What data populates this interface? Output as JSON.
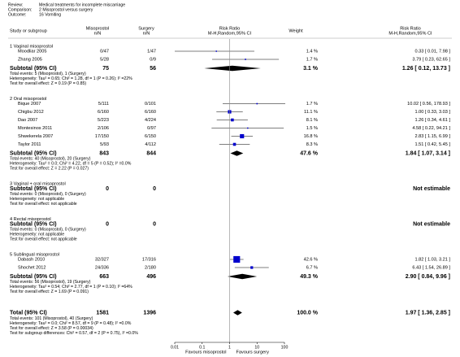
{
  "header": [
    {
      "label": "Review:",
      "text": "Medical treatments for incomplete miscarriage"
    },
    {
      "label": "Comparison:",
      "text": "2 Misoprostol versus surgery"
    },
    {
      "label": "Outcome:",
      "text": "16 Vomiting"
    }
  ],
  "columns": {
    "study": "Study or subgroup",
    "exp": [
      "Misoprostol",
      "n/N"
    ],
    "ctrl": [
      "Surgery",
      "n/N"
    ],
    "plot": [
      "Risk Ratio",
      "M-H,Random,95% CI"
    ],
    "weight": "Weight",
    "ratio": [
      "Risk Ratio",
      "M-H,Random,95% CI"
    ]
  },
  "groups": [
    {
      "label": "1 Vaginal misoprostol",
      "studies": [
        {
          "name": "Moodliar 2005",
          "exp": "0/47",
          "ctrl": "1/47",
          "weight": 1.4,
          "weight_label": "1.4 %",
          "rr": 0.33,
          "lo": 0.01,
          "hi": 7.98,
          "ci_label": "0.33 [ 0.01, 7.98 ]"
        },
        {
          "name": "Zhang 2005",
          "exp": "5/28",
          "ctrl": "0/9",
          "weight": 1.7,
          "weight_label": "1.7 %",
          "rr": 3.79,
          "lo": 0.23,
          "hi": 62.65,
          "ci_label": "3.79 [ 0.23, 62.65 ]"
        }
      ],
      "subtotal": {
        "name": "Subtotal (95% CI)",
        "exp": 75,
        "ctrl": 56,
        "weight": 3.1,
        "weight_label": "3.1 %",
        "rr": 1.26,
        "lo": 0.12,
        "hi": 13.73,
        "ci_label": "1.26 [ 0.12, 13.73 ]"
      },
      "footer": [
        "Total events: 5 (Misoprostol), 1 (Surgery)",
        "Heterogeneity: Tau² = 0.65; Chi² = 1.28, df = 1 (P = 0.26); I² =22%",
        "Test for overall effect: Z = 0.19 (P = 0.85)"
      ]
    },
    {
      "label": "2 Oral misoprostol",
      "studies": [
        {
          "name": "Bique 2007",
          "exp": "5/111",
          "ctrl": "0/101",
          "weight": 1.7,
          "weight_label": "1.7 %",
          "rr": 10.02,
          "lo": 0.56,
          "hi": 178.93,
          "ci_label": "10.02 [ 0.56, 178.93 ]"
        },
        {
          "name": "Chigbu 2012",
          "exp": "6/160",
          "ctrl": "6/160",
          "weight": 11.1,
          "weight_label": "11.1 %",
          "rr": 1.0,
          "lo": 0.33,
          "hi": 3.03,
          "ci_label": "1.00 [ 0.33, 3.03 ]"
        },
        {
          "name": "Dao 2007",
          "exp": "5/223",
          "ctrl": "4/224",
          "weight": 8.1,
          "weight_label": "8.1 %",
          "rr": 1.26,
          "lo": 0.34,
          "hi": 4.61,
          "ci_label": "1.26 [ 0.34, 4.61 ]"
        },
        {
          "name": "Montesinos 2011",
          "exp": "2/106",
          "ctrl": "0/97",
          "weight": 1.5,
          "weight_label": "1.5 %",
          "rr": 4.58,
          "lo": 0.22,
          "hi": 94.21,
          "ci_label": "4.58 [ 0.22, 94.21 ]"
        },
        {
          "name": "Shwekerela 2007",
          "exp": "17/150",
          "ctrl": "6/150",
          "weight": 16.8,
          "weight_label": "16.8 %",
          "rr": 2.83,
          "lo": 1.15,
          "hi": 6.99,
          "ci_label": "2.83 [ 1.15, 6.99 ]"
        },
        {
          "name": "Taylor 2011",
          "exp": "5/93",
          "ctrl": "4/112",
          "weight": 8.3,
          "weight_label": "8.3 %",
          "rr": 1.51,
          "lo": 0.42,
          "hi": 5.45,
          "ci_label": "1.51 [ 0.42, 5.45 ]"
        }
      ],
      "subtotal": {
        "name": "Subtotal (95% CI)",
        "exp": 843,
        "ctrl": 844,
        "weight": 47.6,
        "weight_label": "47.6 %",
        "rr": 1.84,
        "lo": 1.07,
        "hi": 3.14,
        "ci_label": "1.84 [ 1.07, 3.14 ]"
      },
      "footer": [
        "Total events: 40 (Misoprostol), 20 (Surgery)",
        "Heterogeneity: Tau² = 0.0; Chi² = 4.22, df = 5 (P = 0.52); I² =0.0%",
        "Test for overall effect: Z = 2.22 (P = 0.027)"
      ]
    },
    {
      "label": "3 Vaginal + oral misoprostol",
      "studies": [],
      "subtotal": {
        "name": "Subtotal (95% CI)",
        "exp": 0,
        "ctrl": 0,
        "ci_label": "Not estimable"
      },
      "footer": [
        "Total events: 0 (Misoprostol), 0 (Surgery)",
        "Heterogeneity: not applicable",
        "Test for overall effect: not applicable"
      ]
    },
    {
      "label": "4 Rectal misoprostol",
      "studies": [],
      "subtotal": {
        "name": "Subtotal (95% CI)",
        "exp": 0,
        "ctrl": 0,
        "ci_label": "Not estimable"
      },
      "footer": [
        "Total events: 0 (Misoprostol), 0 (Surgery)",
        "Heterogeneity: not applicable",
        "Test for overall effect: not applicable"
      ]
    },
    {
      "label": "5 Sublingual misoprostol",
      "studies": [
        {
          "name": "Dabash 2010",
          "exp": "32/327",
          "ctrl": "17/316",
          "weight": 42.6,
          "weight_label": "42.6 %",
          "rr": 1.82,
          "lo": 1.03,
          "hi": 3.21,
          "ci_label": "1.82 [ 1.03, 3.21 ]"
        },
        {
          "name": "Shochet 2012",
          "exp": "24/336",
          "ctrl": "2/180",
          "weight": 6.7,
          "weight_label": "6.7 %",
          "rr": 6.43,
          "lo": 1.54,
          "hi": 26.89,
          "ci_label": "6.43 [ 1.54, 26.89 ]"
        }
      ],
      "subtotal": {
        "name": "Subtotal (95% CI)",
        "exp": 663,
        "ctrl": 496,
        "weight": 49.3,
        "weight_label": "49.3 %",
        "rr": 2.9,
        "lo": 0.84,
        "hi": 9.96,
        "ci_label": "2.90 [ 0.84, 9.96 ]"
      },
      "footer": [
        "Total events: 56 (Misoprostol), 19 (Surgery)",
        "Heterogeneity: Tau² = 0.54; Chi² = 2.77, df = 1 (P = 0.10); I² =64%",
        "Test for overall effect: Z = 1.69 (P = 0.091)"
      ]
    }
  ],
  "overall": {
    "name": "Total (95% CI)",
    "exp": 1581,
    "ctrl": 1396,
    "weight": 100.0,
    "weight_label": "100.0 %",
    "rr": 1.97,
    "lo": 1.36,
    "hi": 2.85,
    "ci_label": "1.97 [ 1.36, 2.85 ]",
    "footer": [
      "Total events: 101 (Misoprostol), 40 (Surgery)",
      "Heterogeneity: Tau² = 0.0; Chi² = 8.57, df = 9 (P = 0.48); I² =0.0%",
      "Test for overall effect: Z = 3.58 (P = 0.00034)",
      "Test for subgroup differences: Chi² = 0.57, df = 2 (P = 0.75), I² =0.0%"
    ]
  },
  "axis": {
    "log": true,
    "xlim": [
      0.01,
      100
    ],
    "xticks": [
      0.01,
      0.1,
      1,
      10,
      100
    ],
    "left_label": "Favours misoprostol",
    "right_label": "Favours surgery",
    "marker_color": "#0000cc"
  }
}
